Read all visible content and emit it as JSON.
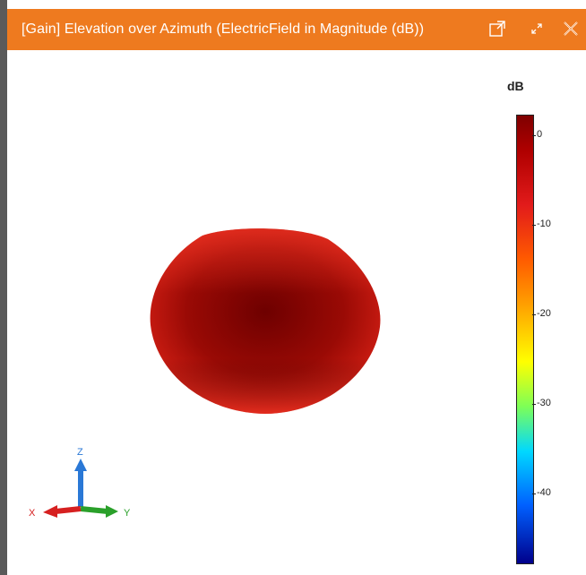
{
  "window": {
    "title": "[Gain] Elevation over Azimuth (ElectricField in Magnitude (dB))",
    "title_bar_color": "#ee7a1f",
    "buttons": [
      {
        "name": "popout",
        "icon": "popout-icon"
      },
      {
        "name": "expand",
        "icon": "expand-icon"
      },
      {
        "name": "close",
        "icon": "close-icon"
      }
    ]
  },
  "legend": {
    "unit": "dB",
    "ticks": [
      "0",
      "-10",
      "-20",
      "-30",
      "-40"
    ]
  },
  "axes_triad": {
    "x_label": "X",
    "y_label": "Y",
    "z_label": "Z",
    "x_color": "#d62020",
    "y_color": "#2aa02a",
    "z_color": "#2a78d6"
  },
  "pattern": {
    "color": "#d42017"
  }
}
